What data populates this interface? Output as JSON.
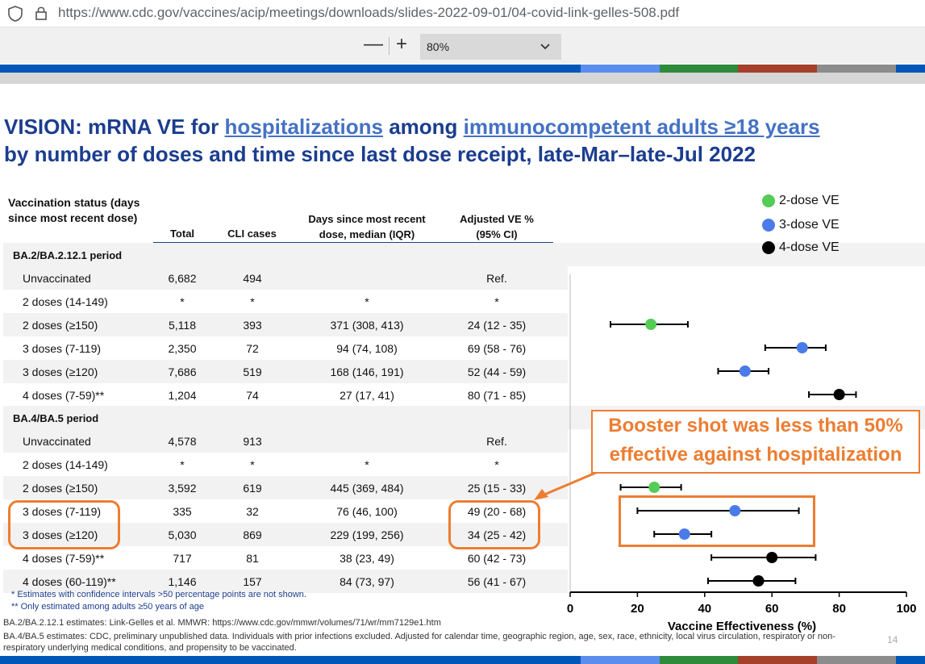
{
  "browser": {
    "url": "https://www.cdc.gov/vaccines/acip/meetings/downloads/slides-2022-09-01/04-covid-link-gelles-508.pdf",
    "icons": [
      "shield-icon",
      "lock-icon"
    ]
  },
  "pdf_toolbar": {
    "zoom_out": "—",
    "zoom_in": "+",
    "zoom_value": "80%"
  },
  "colors": {
    "band_blue": "#0057b8",
    "band_light_blue": "#5b8def",
    "band_green": "#2e8b3c",
    "band_red": "#a5402a",
    "band_gray": "#8c8c8c",
    "title": "#1b3d8f",
    "dose2": "#55cc55",
    "dose3": "#4a7be8",
    "dose4": "#000000",
    "annotation": "#ed7d31"
  },
  "slide": {
    "title_line1_pre": "VISION: mRNA VE for ",
    "title_link1": "hospitalizations",
    "title_line1_mid": " among ",
    "title_link2": "immunocompetent adults ≥18 years",
    "title_line2": "by number of doses and time since last dose receipt, late-Mar–late-Jul 2022",
    "headers": {
      "status": "Vaccination status (days since most recent dose)",
      "total": "Total",
      "cli": "CLI cases",
      "days": "Days since most recent dose, median (IQR)",
      "ve": "Adjusted VE % (95% CI)"
    },
    "sections": [
      {
        "label": "BA.2/BA.2.12.1 period"
      },
      {
        "label": "BA.4/BA.5 period"
      }
    ],
    "rows": [
      {
        "status": "Unvaccinated",
        "total": "6,682",
        "cli": "494",
        "days": "",
        "ve": "Ref."
      },
      {
        "status": "2 doses (14-149)",
        "total": "*",
        "cli": "*",
        "days": "*",
        "ve": "*"
      },
      {
        "status": "2 doses (≥150)",
        "total": "5,118",
        "cli": "393",
        "days": "371 (308, 413)",
        "ve": "24 (12 - 35)"
      },
      {
        "status": "3 doses (7-119)",
        "total": "2,350",
        "cli": "72",
        "days": "94 (74, 108)",
        "ve": "69 (58 - 76)"
      },
      {
        "status": "3 doses (≥120)",
        "total": "7,686",
        "cli": "519",
        "days": "168 (146, 191)",
        "ve": "52 (44 - 59)"
      },
      {
        "status": "4 doses (7-59)**",
        "total": "1,204",
        "cli": "74",
        "days": "27 (17, 41)",
        "ve": "80 (71 - 85)"
      },
      {
        "status": "Unvaccinated",
        "total": "4,578",
        "cli": "913",
        "days": "",
        "ve": "Ref."
      },
      {
        "status": "2 doses (14-149)",
        "total": "*",
        "cli": "*",
        "days": "*",
        "ve": "*"
      },
      {
        "status": "2 doses (≥150)",
        "total": "3,592",
        "cli": "619",
        "days": "445 (369, 484)",
        "ve": "25 (15 - 33)"
      },
      {
        "status": "3 doses (7-119)",
        "total": "335",
        "cli": "32",
        "days": "76 (46, 100)",
        "ve": "49 (20 - 68)"
      },
      {
        "status": "3 doses (≥120)",
        "total": "5,030",
        "cli": "869",
        "days": "229 (199, 256)",
        "ve": "34 (25 - 42)"
      },
      {
        "status": "4 doses (7-59)**",
        "total": "717",
        "cli": "81",
        "days": "38 (23, 49)",
        "ve": "60 (42 - 73)"
      },
      {
        "status": "4 doses (60-119)**",
        "total": "1,146",
        "cli": "157",
        "days": "84 (73, 97)",
        "ve": "56 (41 - 67)"
      }
    ],
    "footnote1": "* Estimates with confidence intervals >50 percentage points are not shown.",
    "footnote2": "** Only estimated among adults ≥50 years of age",
    "source1": "BA.2/BA.2.12.1 estimates: Link-Gelles et al. MMWR: https://www.cdc.gov/mmwr/volumes/71/wr/mm7129e1.htm",
    "source2": "BA.4/BA.5 estimates: CDC, preliminary unpublished data. Individuals with prior infections excluded. Adjusted for calendar time, geographic region, age, sex, race, ethnicity, local virus circulation, respiratory or non-",
    "source3": "respiratory underlying medical conditions, and propensity to be vaccinated.",
    "page_number": "14",
    "annotation_line1": "Booster shot was less than 50%",
    "annotation_line2": "effective against hospitalization"
  },
  "chart_data": {
    "type": "scatter",
    "xlabel": "Vaccine Effectiveness (%)",
    "xlim": [
      0,
      100
    ],
    "xticks": [
      0,
      20,
      40,
      60,
      80,
      100
    ],
    "legend": [
      "2-dose VE",
      "3-dose VE",
      "4-dose VE"
    ],
    "legend_placement": "top-right",
    "points": [
      {
        "row": 2,
        "series": "2-dose VE",
        "ve": 24,
        "lo": 12,
        "hi": 35
      },
      {
        "row": 3,
        "series": "3-dose VE",
        "ve": 69,
        "lo": 58,
        "hi": 76
      },
      {
        "row": 4,
        "series": "3-dose VE",
        "ve": 52,
        "lo": 44,
        "hi": 59
      },
      {
        "row": 5,
        "series": "4-dose VE",
        "ve": 80,
        "lo": 71,
        "hi": 85
      },
      {
        "row": 8,
        "series": "2-dose VE",
        "ve": 25,
        "lo": 15,
        "hi": 33
      },
      {
        "row": 9,
        "series": "3-dose VE",
        "ve": 49,
        "lo": 20,
        "hi": 68
      },
      {
        "row": 10,
        "series": "3-dose VE",
        "ve": 34,
        "lo": 25,
        "hi": 42
      },
      {
        "row": 11,
        "series": "4-dose VE",
        "ve": 60,
        "lo": 42,
        "hi": 73
      },
      {
        "row": 12,
        "series": "4-dose VE",
        "ve": 56,
        "lo": 41,
        "hi": 67
      }
    ]
  }
}
